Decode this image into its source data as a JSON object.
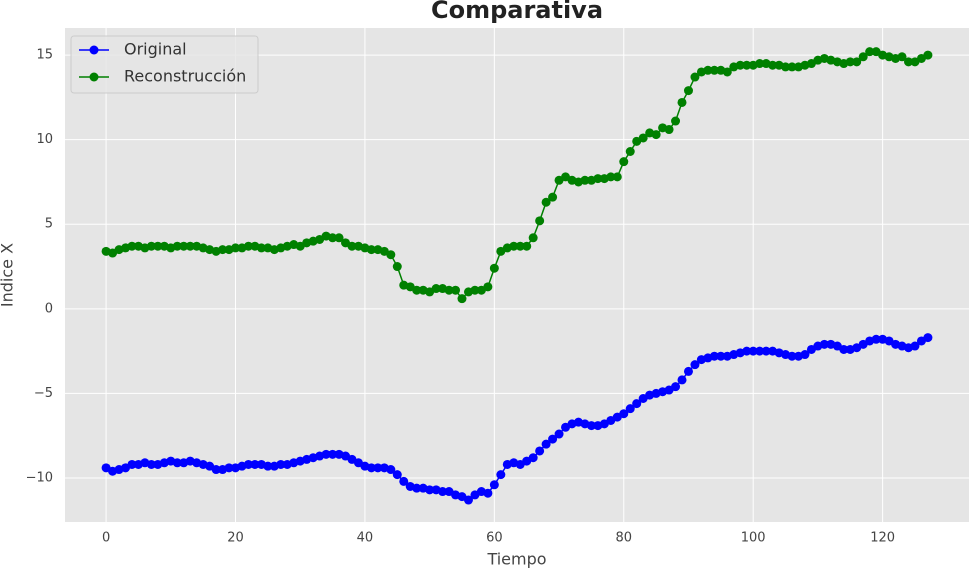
{
  "chart_data": {
    "type": "line",
    "title": "Comparativa",
    "xlabel": "Tiempo",
    "ylabel": "Indice X",
    "x": [
      0,
      1,
      2,
      3,
      4,
      5,
      6,
      7,
      8,
      9,
      10,
      11,
      12,
      13,
      14,
      15,
      16,
      17,
      18,
      19,
      20,
      21,
      22,
      23,
      24,
      25,
      26,
      27,
      28,
      29,
      30,
      31,
      32,
      33,
      34,
      35,
      36,
      37,
      38,
      39,
      40,
      41,
      42,
      43,
      44,
      45,
      46,
      47,
      48,
      49,
      50,
      51,
      52,
      53,
      54,
      55,
      56,
      57,
      58,
      59,
      60,
      61,
      62,
      63,
      64,
      65,
      66,
      67,
      68,
      69,
      70,
      71,
      72,
      73,
      74,
      75,
      76,
      77,
      78,
      79,
      80,
      81,
      82,
      83,
      84,
      85,
      86,
      87,
      88,
      89,
      90,
      91,
      92,
      93,
      94,
      95,
      96,
      97,
      98,
      99,
      100,
      101,
      102,
      103,
      104,
      105,
      106,
      107,
      108,
      109,
      110,
      111,
      112,
      113,
      114,
      115,
      116,
      117,
      118,
      119,
      120,
      121,
      122,
      123,
      124,
      125,
      126,
      127
    ],
    "series": [
      {
        "name": "Original",
        "color": "#0000ff",
        "values": [
          -9.4,
          -9.6,
          -9.5,
          -9.4,
          -9.2,
          -9.2,
          -9.1,
          -9.2,
          -9.2,
          -9.1,
          -9.0,
          -9.1,
          -9.1,
          -9.0,
          -9.1,
          -9.2,
          -9.3,
          -9.5,
          -9.5,
          -9.4,
          -9.4,
          -9.3,
          -9.2,
          -9.2,
          -9.2,
          -9.3,
          -9.3,
          -9.2,
          -9.2,
          -9.1,
          -9.0,
          -8.9,
          -8.8,
          -8.7,
          -8.6,
          -8.6,
          -8.6,
          -8.7,
          -8.9,
          -9.1,
          -9.3,
          -9.4,
          -9.4,
          -9.4,
          -9.5,
          -9.8,
          -10.2,
          -10.5,
          -10.6,
          -10.6,
          -10.7,
          -10.7,
          -10.8,
          -10.8,
          -11.0,
          -11.1,
          -11.3,
          -11.0,
          -10.8,
          -10.9,
          -10.4,
          -9.8,
          -9.2,
          -9.1,
          -9.2,
          -9.0,
          -8.8,
          -8.4,
          -8.0,
          -7.7,
          -7.4,
          -7.0,
          -6.8,
          -6.7,
          -6.8,
          -6.9,
          -6.9,
          -6.8,
          -6.6,
          -6.4,
          -6.2,
          -5.9,
          -5.6,
          -5.3,
          -5.1,
          -5.0,
          -4.9,
          -4.8,
          -4.6,
          -4.2,
          -3.7,
          -3.3,
          -3.0,
          -2.9,
          -2.8,
          -2.8,
          -2.8,
          -2.7,
          -2.6,
          -2.5,
          -2.5,
          -2.5,
          -2.5,
          -2.5,
          -2.6,
          -2.7,
          -2.8,
          -2.8,
          -2.7,
          -2.4,
          -2.2,
          -2.1,
          -2.1,
          -2.2,
          -2.4,
          -2.4,
          -2.3,
          -2.1,
          -1.9,
          -1.8,
          -1.8,
          -1.9,
          -2.1,
          -2.2,
          -2.3,
          -2.2,
          -1.9,
          -1.7
        ]
      },
      {
        "name": "Reconstrucción",
        "color": "#008000",
        "values": [
          3.4,
          3.3,
          3.5,
          3.6,
          3.7,
          3.7,
          3.6,
          3.7,
          3.7,
          3.7,
          3.6,
          3.7,
          3.7,
          3.7,
          3.7,
          3.6,
          3.5,
          3.4,
          3.5,
          3.5,
          3.6,
          3.6,
          3.7,
          3.7,
          3.6,
          3.6,
          3.5,
          3.6,
          3.7,
          3.8,
          3.7,
          3.9,
          4.0,
          4.1,
          4.3,
          4.2,
          4.2,
          3.9,
          3.7,
          3.7,
          3.6,
          3.5,
          3.5,
          3.4,
          3.2,
          2.5,
          1.4,
          1.3,
          1.1,
          1.1,
          1.0,
          1.2,
          1.2,
          1.1,
          1.1,
          0.6,
          1.0,
          1.1,
          1.1,
          1.3,
          2.4,
          3.4,
          3.6,
          3.7,
          3.7,
          3.7,
          4.2,
          5.2,
          6.3,
          6.6,
          7.6,
          7.8,
          7.6,
          7.5,
          7.6,
          7.6,
          7.7,
          7.7,
          7.8,
          7.8,
          8.7,
          9.3,
          9.9,
          10.1,
          10.4,
          10.3,
          10.7,
          10.6,
          11.1,
          12.2,
          12.9,
          13.7,
          14.0,
          14.1,
          14.1,
          14.1,
          14.0,
          14.3,
          14.4,
          14.4,
          14.4,
          14.5,
          14.5,
          14.4,
          14.4,
          14.3,
          14.3,
          14.3,
          14.4,
          14.5,
          14.7,
          14.8,
          14.7,
          14.6,
          14.5,
          14.6,
          14.6,
          14.9,
          15.2,
          15.2,
          15.0,
          14.9,
          14.8,
          14.9,
          14.6,
          14.6,
          14.8,
          15.0
        ]
      }
    ],
    "xlim": [
      -6.35,
      133.35
    ],
    "ylim": [
      -12.6,
      16.6
    ],
    "xticks": [
      0,
      20,
      40,
      60,
      80,
      100,
      120
    ],
    "yticks": [
      {
        "value": -10,
        "label": "−10"
      },
      {
        "value": -5,
        "label": "−5"
      },
      0,
      5,
      10,
      15
    ],
    "grid": true,
    "legend": "upper left"
  }
}
